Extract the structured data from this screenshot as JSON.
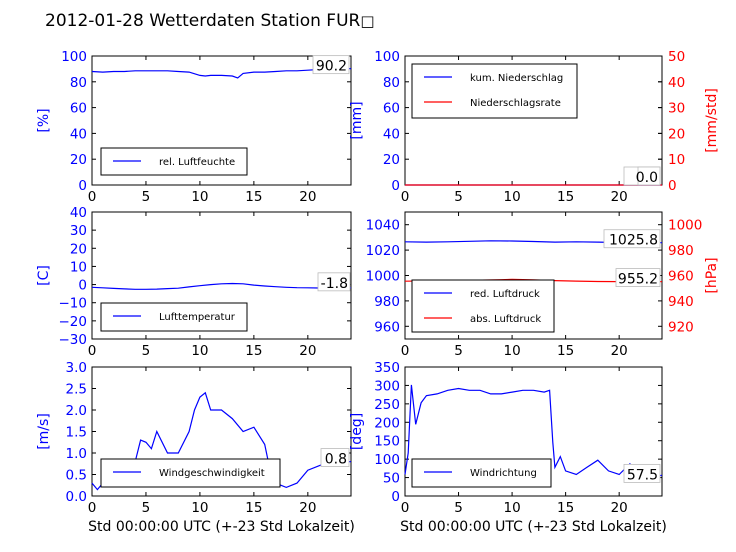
{
  "title": "2012-01-28 Wetterdaten Station FUR",
  "title_glyph": "□",
  "colors": {
    "blue": "#0000ff",
    "red": "#ff0000",
    "black": "#000000"
  },
  "chart_data": [
    {
      "type": "line",
      "ylabel": "[%]",
      "xlim": [
        0,
        24
      ],
      "ylim": [
        0,
        100
      ],
      "xticks": [
        "0",
        "5",
        "10",
        "15",
        "20"
      ],
      "yticks": [
        "0",
        "20",
        "40",
        "60",
        "80",
        "100"
      ],
      "series": [
        {
          "name": "rel. Luftfeuchte",
          "color": "#0000ff",
          "x": [
            0,
            1,
            2,
            3,
            4,
            5,
            6,
            7,
            8,
            9,
            10,
            10.5,
            11,
            12,
            13,
            13.5,
            14,
            15,
            16,
            17,
            18,
            19,
            20,
            21,
            22,
            23,
            24
          ],
          "y": [
            88,
            87.5,
            88,
            88,
            88.5,
            88.5,
            88.5,
            88.5,
            88,
            87.5,
            85,
            84.5,
            85,
            85,
            84.5,
            83,
            86.5,
            87.5,
            87.5,
            88,
            88.5,
            88.5,
            89,
            89.5,
            90,
            90.2,
            90.2
          ]
        }
      ],
      "annotations": [
        "90.2"
      ]
    },
    {
      "type": "line",
      "ylabel": "[mm]",
      "ylabel_right": "[mm/std]",
      "xlim": [
        0,
        24
      ],
      "ylim": [
        0,
        100
      ],
      "ylim_right": [
        0,
        50
      ],
      "xticks": [
        "0",
        "5",
        "10",
        "15",
        "20"
      ],
      "yticks": [
        "0",
        "20",
        "40",
        "60",
        "80",
        "100"
      ],
      "yticks_right": [
        "0",
        "10",
        "20",
        "30",
        "40",
        "50"
      ],
      "series": [
        {
          "name": "kum. Niederschlag",
          "color": "#0000ff",
          "x": [
            0,
            24
          ],
          "y": [
            0,
            0
          ]
        },
        {
          "name": "Niederschlagsrate",
          "color": "#ff0000",
          "x": [
            0,
            24
          ],
          "y": [
            0,
            0
          ]
        }
      ],
      "annotations": [
        "0.0",
        "0.0"
      ]
    },
    {
      "type": "line",
      "ylabel": "[C]",
      "xlim": [
        0,
        24
      ],
      "ylim": [
        -30,
        40
      ],
      "xticks": [
        "0",
        "5",
        "10",
        "15",
        "20"
      ],
      "yticks": [
        "−30",
        "−20",
        "−10",
        "0",
        "10",
        "20",
        "30",
        "40"
      ],
      "series": [
        {
          "name": "Lufttemperatur",
          "color": "#0000ff",
          "x": [
            0,
            1,
            2,
            3,
            4,
            5,
            6,
            7,
            8,
            9,
            10,
            11,
            12,
            13,
            14,
            15,
            16,
            17,
            18,
            19,
            20,
            21,
            22,
            23,
            24
          ],
          "y": [
            -1.5,
            -1.8,
            -2.1,
            -2.4,
            -2.6,
            -2.6,
            -2.5,
            -2.2,
            -2.0,
            -1.3,
            -0.6,
            0,
            0.4,
            0.6,
            0.4,
            -0.3,
            -0.8,
            -1.2,
            -1.5,
            -1.7,
            -1.8,
            -1.9,
            -1.9,
            -1.8,
            -1.8
          ]
        }
      ],
      "annotations": [
        "-1.8"
      ]
    },
    {
      "type": "line",
      "ylabel_right": "[hPa]",
      "xlim": [
        0,
        24
      ],
      "ylim": [
        950,
        1050
      ],
      "ylim_right": [
        910,
        1010
      ],
      "xticks": [
        "0",
        "5",
        "10",
        "15",
        "20"
      ],
      "yticks": [
        "960",
        "980",
        "1000",
        "1020",
        "1040"
      ],
      "yticks_right": [
        "920",
        "940",
        "960",
        "980",
        "1000"
      ],
      "series": [
        {
          "name": "red. Luftdruck",
          "color": "#0000ff",
          "x": [
            0,
            2,
            4,
            6,
            8,
            10,
            12,
            14,
            16,
            18,
            20,
            22,
            24
          ],
          "y": [
            1026.5,
            1026.3,
            1026.5,
            1026.9,
            1027.3,
            1027.2,
            1026.8,
            1026.3,
            1026.5,
            1026.3,
            1026.0,
            1025.8,
            1025.8
          ]
        },
        {
          "name": "abs. Luftdruck",
          "color": "#ff0000",
          "x": [
            0,
            3,
            6,
            9,
            10,
            12,
            14,
            16,
            18,
            20,
            22,
            24
          ],
          "y": [
            955.5,
            955.8,
            956.2,
            956.7,
            957.0,
            956.5,
            956.0,
            955.6,
            955.3,
            955.2,
            955.2,
            955.2
          ]
        }
      ],
      "annotations": [
        "1025.8",
        "955.2"
      ]
    },
    {
      "type": "line",
      "ylabel": "[m/s]",
      "xlim": [
        0,
        24
      ],
      "ylim": [
        0,
        3
      ],
      "xticks": [
        "0",
        "5",
        "10",
        "15",
        "20"
      ],
      "yticks": [
        "0.0",
        "0.5",
        "1.0",
        "1.5",
        "2.0",
        "2.5",
        "3.0"
      ],
      "xlabel": "Std 00:00:00 UTC (+-23 Std Lokalzeit)",
      "series": [
        {
          "name": "Windgeschwindigkeit",
          "color": "#0000ff",
          "x": [
            0,
            0.5,
            1,
            2,
            3,
            4,
            4.5,
            5,
            5.5,
            6,
            7,
            8,
            9,
            9.5,
            10,
            10.5,
            11,
            12,
            13,
            14,
            15,
            16,
            16.5,
            17,
            18,
            19,
            20,
            21,
            22,
            23,
            24
          ],
          "y": [
            0.3,
            0.15,
            0.3,
            0.6,
            0.7,
            0.8,
            1.3,
            1.25,
            1.1,
            1.5,
            1.0,
            1.0,
            1.5,
            2.0,
            2.3,
            2.4,
            2.0,
            2.0,
            1.8,
            1.5,
            1.6,
            1.2,
            0.6,
            0.3,
            0.2,
            0.3,
            0.6,
            0.7,
            0.8,
            0.8,
            0.8
          ]
        }
      ],
      "annotations": [
        "0.8"
      ]
    },
    {
      "type": "line",
      "ylabel": "[deg]",
      "xlim": [
        0,
        24
      ],
      "ylim": [
        0,
        360
      ],
      "xticks": [
        "0",
        "5",
        "10",
        "15",
        "20"
      ],
      "yticks": [
        "0",
        "50",
        "100",
        "150",
        "200",
        "250",
        "300",
        "350"
      ],
      "xlabel": "Std 00:00:00 UTC (+-23 Std Lokalzeit)",
      "series": [
        {
          "name": "Windrichtung",
          "color": "#0000ff",
          "x": [
            0,
            0.3,
            0.6,
            1,
            1.5,
            2,
            3,
            4,
            5,
            6,
            7,
            8,
            9,
            10,
            11,
            12,
            13,
            13.5,
            13.8,
            14,
            14.5,
            15,
            16,
            17,
            18,
            19,
            20,
            21,
            22,
            23,
            24
          ],
          "y": [
            60,
            120,
            310,
            200,
            260,
            280,
            285,
            295,
            300,
            295,
            295,
            285,
            285,
            290,
            295,
            295,
            290,
            295,
            150,
            80,
            110,
            70,
            60,
            80,
            100,
            70,
            60,
            90,
            60,
            55,
            57.5
          ]
        }
      ],
      "annotations": [
        "57.5"
      ]
    }
  ]
}
